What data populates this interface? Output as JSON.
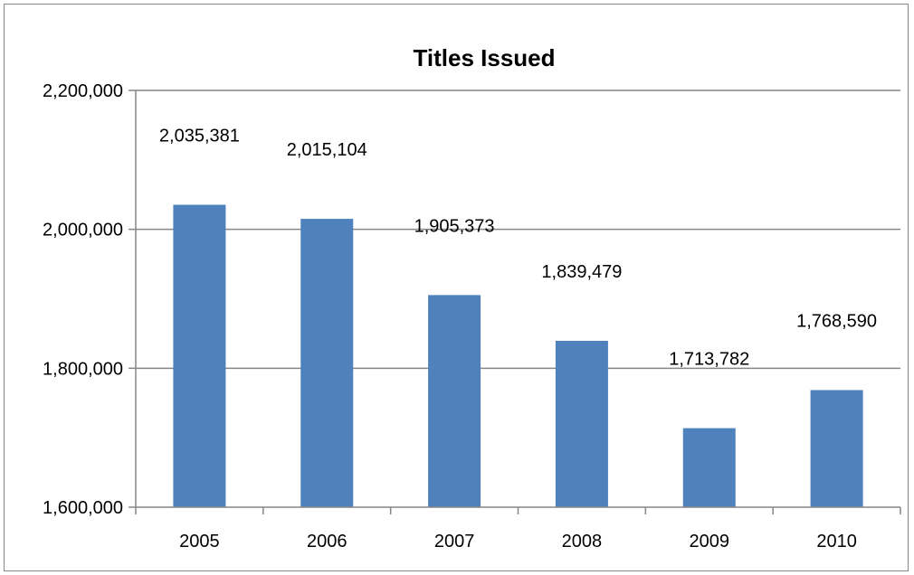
{
  "chart_data": {
    "type": "bar",
    "title": "Titles Issued",
    "categories": [
      "2005",
      "2006",
      "2007",
      "2008",
      "2009",
      "2010"
    ],
    "values": [
      2035381,
      2015104,
      1905373,
      1839479,
      1713782,
      1768590
    ],
    "data_labels": [
      "2,035,381",
      "2,015,104",
      "1,905,373",
      "1,839,479",
      "1,713,782",
      "1,768,590"
    ],
    "ylim": [
      1600000,
      2200000
    ],
    "yticks": [
      1600000,
      1800000,
      2000000,
      2200000
    ],
    "ytick_labels": [
      "1,600,000",
      "1,800,000",
      "2,000,000",
      "2,200,000"
    ],
    "xlabel": "",
    "ylabel": "",
    "grid": true,
    "legend": "none",
    "bar_color": "#4F81BD"
  }
}
